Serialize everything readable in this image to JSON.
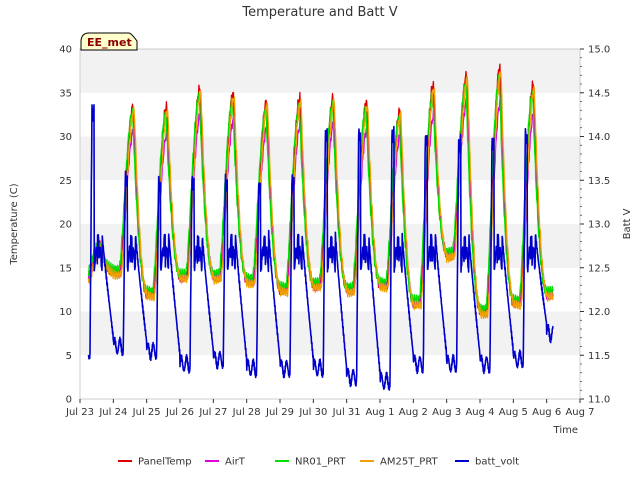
{
  "chart_data": {
    "type": "line",
    "title": "Temperature and Batt V",
    "xlabel": "Time",
    "ylabel": "Temperature (C)",
    "y2label": "Batt V",
    "site_label": "EE_met",
    "xlim": [
      0,
      15
    ],
    "ylim": [
      0,
      40
    ],
    "y2lim": [
      11.0,
      15.0
    ],
    "x_ticks": [
      0,
      1,
      2,
      3,
      4,
      5,
      6,
      7,
      8,
      9,
      10,
      11,
      12,
      13,
      14,
      15
    ],
    "x_tick_labels": [
      "Jul 23",
      "Jul 24",
      "Jul 25",
      "Jul 26",
      "Jul 27",
      "Jul 28",
      "Jul 29",
      "Jul 30",
      "Jul 31",
      "Aug 1",
      "Aug 2",
      "Aug 3",
      "Aug 4",
      "Aug 5",
      "Aug 6",
      "Aug 7"
    ],
    "y_ticks": [
      0,
      5,
      10,
      15,
      20,
      25,
      30,
      35,
      40
    ],
    "y2_ticks": [
      11.0,
      11.5,
      12.0,
      12.5,
      13.0,
      13.5,
      14.0,
      14.5,
      15.0
    ],
    "y2_tick_labels": [
      "11.0",
      "11.5",
      "12.0",
      "12.5",
      "13.0",
      "13.5",
      "14.0",
      "14.5",
      "15.0"
    ],
    "grid_bands": true,
    "legend_position": "bottom",
    "start_x": 0.25,
    "end_x": 14.2,
    "daily_min": [
      13.5,
      14.5,
      12,
      14,
      14,
      13.5,
      12.5,
      13,
      12.5,
      13,
      11,
      16.5,
      10,
      11,
      12
    ],
    "daily_max": [
      null,
      33.5,
      33.5,
      35.5,
      35,
      34,
      34.5,
      34.5,
      34,
      33,
      36,
      37,
      38,
      36,
      29.5
    ],
    "series": [
      {
        "name": "PanelTemp",
        "color": "#dd0000",
        "axis": "left",
        "max_scale": 1.0,
        "lag": 0.02,
        "offset": 0
      },
      {
        "name": "AirT",
        "color": "#dd00dd",
        "axis": "left",
        "max_scale": 0.86,
        "lag": 0.04,
        "offset": 0
      },
      {
        "name": "NR01_PRT",
        "color": "#00dd00",
        "axis": "left",
        "max_scale": 0.94,
        "lag": 0.0,
        "offset": 0.4
      },
      {
        "name": "AM25T_PRT",
        "color": "#f0a000",
        "axis": "left",
        "max_scale": 0.99,
        "lag": 0.05,
        "offset": -0.3
      },
      {
        "name": "batt_volt",
        "color": "#0000cc",
        "axis": "right",
        "line_width": 1.6,
        "volt_min": [
          11.55,
          11.6,
          11.55,
          11.4,
          11.45,
          11.35,
          11.35,
          11.35,
          11.25,
          11.2,
          11.4,
          11.4,
          11.4,
          11.45,
          11.75
        ],
        "volt_max": [
          14.35,
          13.6,
          13.55,
          13.55,
          13.55,
          13.5,
          13.55,
          14.1,
          14.1,
          14.1,
          14.05,
          14.0,
          14.0,
          14.1,
          14.8
        ]
      }
    ]
  }
}
